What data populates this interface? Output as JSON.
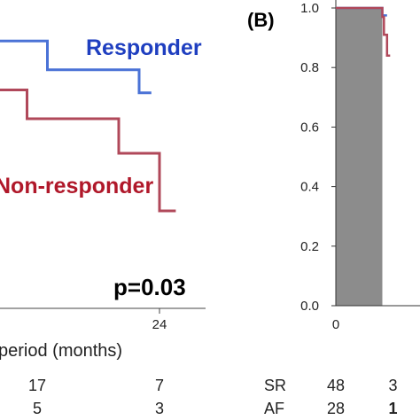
{
  "chart_data": [
    {
      "type": "line",
      "panel_label": "",
      "xlabel": "period (months)",
      "ylabel": "",
      "x_ticks": [
        "24"
      ],
      "series": [
        {
          "name": "Responder",
          "color": "#4a72d6",
          "x": [
            0,
            13,
            13,
            22,
            22,
            23.2
          ],
          "y": [
            0.95,
            0.95,
            0.85,
            0.85,
            0.77,
            0.77
          ]
        },
        {
          "name": "Non-responder",
          "color": "#b0485a",
          "x": [
            0,
            11,
            11,
            20,
            20,
            24,
            24,
            25.6
          ],
          "y": [
            0.78,
            0.78,
            0.68,
            0.68,
            0.56,
            0.56,
            0.36,
            0.36
          ]
        }
      ],
      "annotation": "p=0.03",
      "risk_table": {
        "row_labels": [],
        "columns": [
          {
            "x": 12,
            "values": [
              "17",
              "5"
            ]
          },
          {
            "x": 24,
            "values": [
              "7",
              "3"
            ]
          }
        ]
      }
    },
    {
      "type": "line",
      "panel_label": "(B)",
      "xlabel": "",
      "ylabel": "",
      "ylim": [
        0,
        1
      ],
      "y_ticks": [
        "0.0",
        "0.2",
        "0.4",
        "0.6",
        "0.8",
        "1.0"
      ],
      "x_ticks": [
        "0"
      ],
      "shaded_period": [
        0,
        3
      ],
      "series": [
        {
          "name": "",
          "color": "#4a72d6",
          "x": [
            0,
            3,
            3,
            3.3
          ],
          "y": [
            1.0,
            1.0,
            0.975,
            0.975
          ]
        },
        {
          "name": "",
          "color": "#b0485a",
          "x": [
            0,
            3,
            3,
            3.1,
            3.1,
            3.3,
            3.3,
            3.5
          ],
          "y": [
            1.0,
            1.0,
            0.97,
            0.97,
            0.91,
            0.91,
            0.84,
            0.84
          ]
        }
      ],
      "risk_table": {
        "row_labels": [
          "SR",
          "AF"
        ],
        "columns": [
          {
            "x": 0,
            "values": [
              "48",
              "28"
            ]
          },
          {
            "x": 3.4,
            "values": [
              "3",
              "1"
            ]
          }
        ]
      }
    }
  ]
}
